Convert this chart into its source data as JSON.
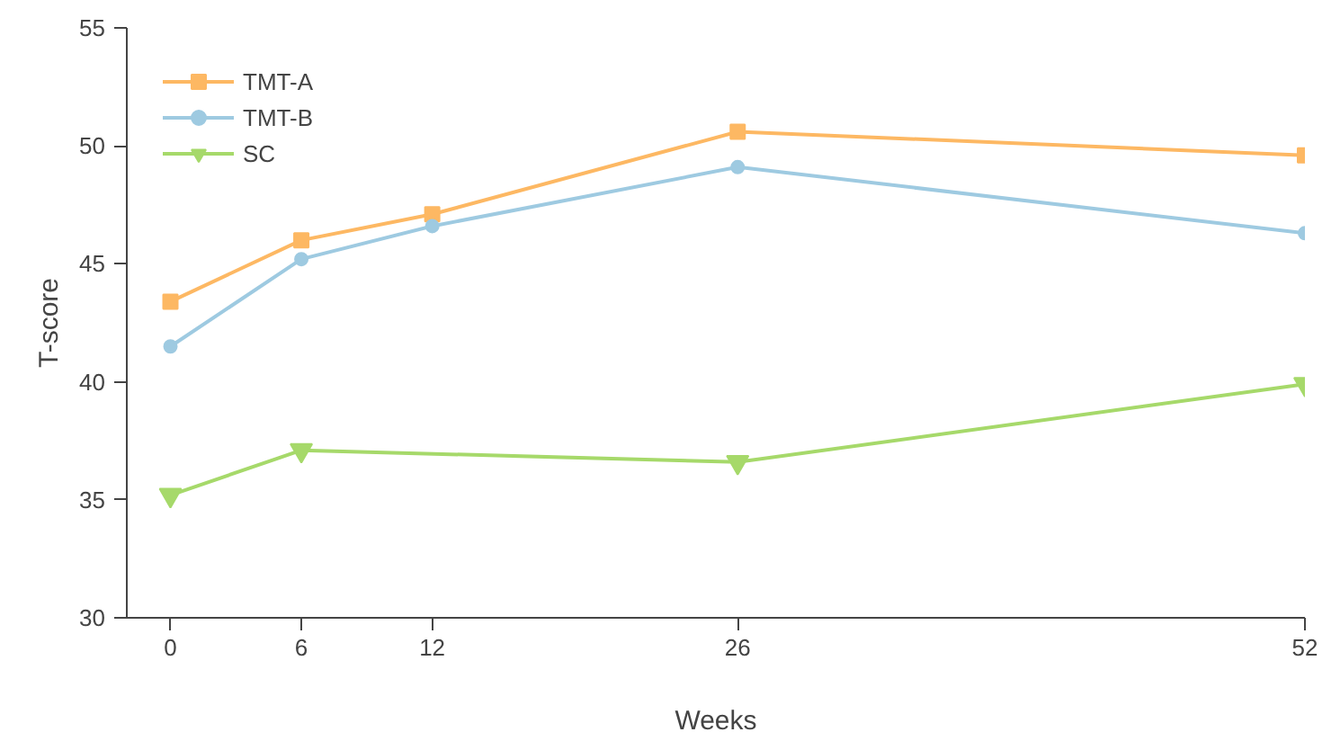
{
  "chart_data": {
    "type": "line",
    "xlabel": "Weeks",
    "ylabel": "T-score",
    "x": [
      0,
      6,
      12,
      26,
      52
    ],
    "xlim": [
      -2,
      52
    ],
    "xticks": [
      0,
      6,
      12,
      26,
      52
    ],
    "ylim": [
      30,
      55
    ],
    "yticks": [
      30,
      35,
      40,
      45,
      50,
      55
    ],
    "grid": false,
    "legend": "top left",
    "series": [
      {
        "name": "TMT-A",
        "color": "#fdb863",
        "marker": "square",
        "values": [
          43.4,
          46.0,
          47.1,
          50.6,
          49.6
        ]
      },
      {
        "name": "TMT-B",
        "color": "#9ecae1",
        "marker": "circle",
        "values": [
          41.5,
          45.2,
          46.6,
          49.1,
          46.3
        ]
      },
      {
        "name": "SC",
        "color": "#a6d96a",
        "marker": "triangle",
        "x": [
          0,
          6,
          26,
          52
        ],
        "values": [
          35.2,
          37.1,
          36.6,
          39.9
        ]
      }
    ]
  }
}
